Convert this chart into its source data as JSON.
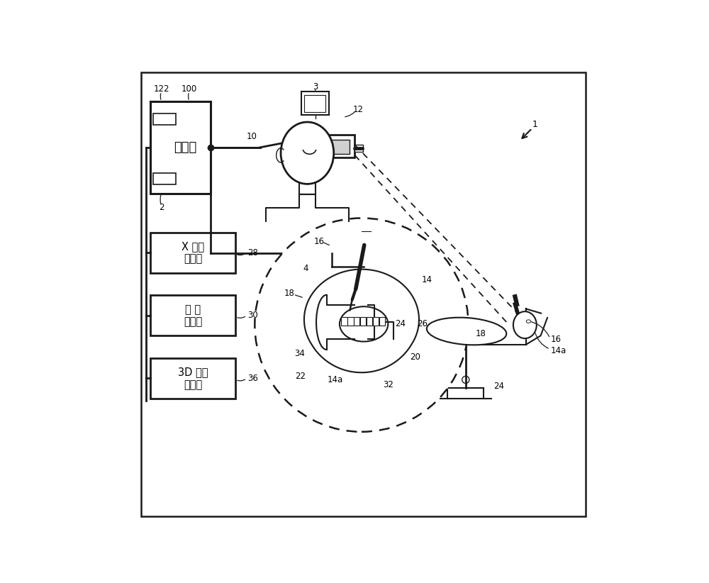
{
  "bg_color": "#ffffff",
  "line_color": "#1a1a1a",
  "figsize": [
    10.0,
    8.22
  ],
  "dpi": 100,
  "computer_label": "计算机",
  "scanner_labels": [
    "X 射线\n扫描仳",
    "口 内\n扫描仳",
    "3D 面部\n扫描仳"
  ],
  "scanner_refs": [
    "28",
    "30",
    "36"
  ]
}
